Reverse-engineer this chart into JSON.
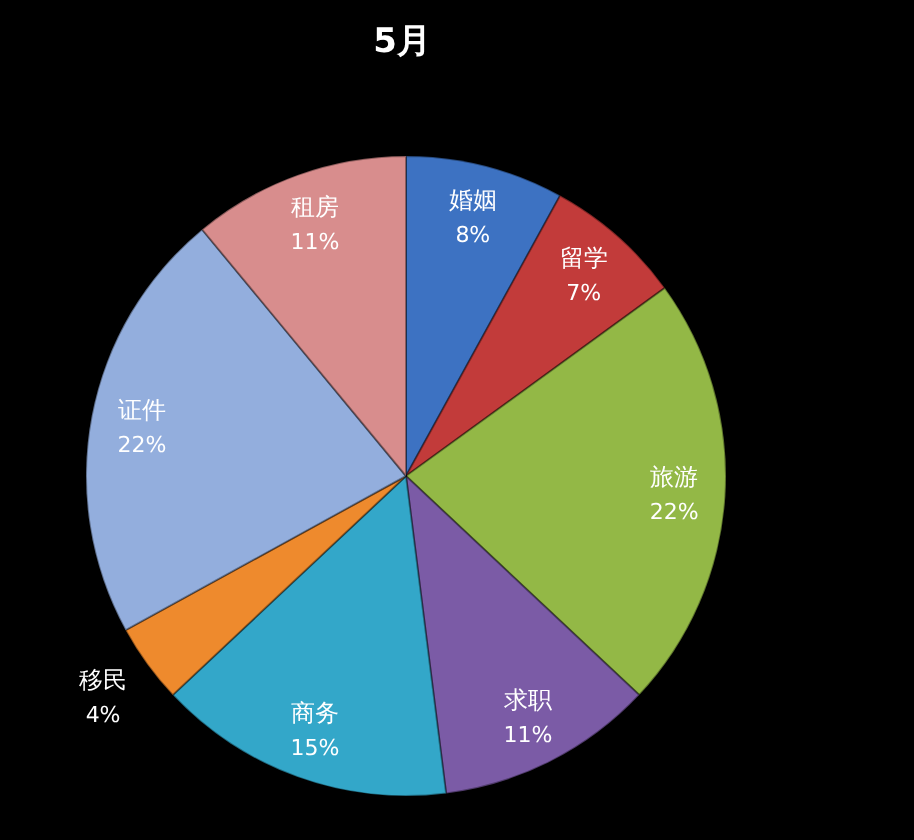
{
  "chart_data": {
    "type": "pie",
    "title": "5月",
    "categories": [
      "婚姻",
      "留学",
      "旅游",
      "求职",
      "商务",
      "移民",
      "证件",
      "租房"
    ],
    "values": [
      8,
      7,
      22,
      11,
      15,
      4,
      22,
      11
    ],
    "value_labels": [
      "8%",
      "7%",
      "22%",
      "11%",
      "15%",
      "4%",
      "22%",
      "11%"
    ],
    "colors": [
      "#3d72c2",
      "#c23b3a",
      "#93b846",
      "#7b5ba6",
      "#33a7c9",
      "#ee8a2d",
      "#93aedd",
      "#d88d8d"
    ]
  }
}
